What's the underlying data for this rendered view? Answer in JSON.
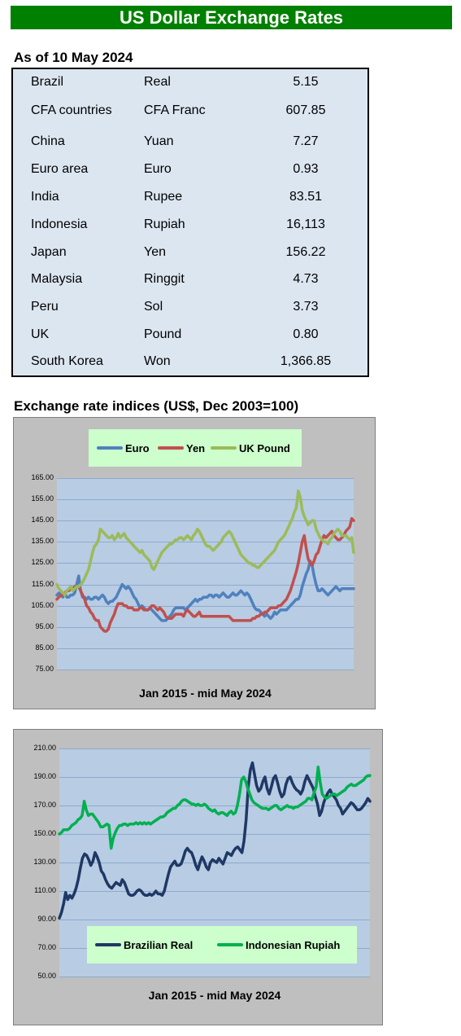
{
  "title": "US Dollar Exchange Rates",
  "as_of": "As of 10 May 2024",
  "rates": [
    {
      "country": "Brazil",
      "currency": "Real",
      "value": "5.15"
    },
    {
      "country": "CFA countries",
      "currency": "CFA Franc",
      "value": "607.85"
    },
    {
      "country": "China",
      "currency": "Yuan",
      "value": "7.27"
    },
    {
      "country": "Euro area",
      "currency": "Euro",
      "value": "0.93"
    },
    {
      "country": "India",
      "currency": "Rupee",
      "value": "83.51"
    },
    {
      "country": "Indonesia",
      "currency": "Rupiah",
      "value": "16,113"
    },
    {
      "country": "Japan",
      "currency": "Yen",
      "value": "156.22"
    },
    {
      "country": "Malaysia",
      "currency": "Ringgit",
      "value": "4.73"
    },
    {
      "country": "Peru",
      "currency": "Sol",
      "value": "3.73"
    },
    {
      "country": "UK",
      "currency": "Pound",
      "value": "0.80"
    },
    {
      "country": "South Korea",
      "currency": "Won",
      "value": "1,366.85"
    }
  ],
  "indices_heading": "Exchange rate indices (US$, Dec 2003=100)",
  "chart_data": [
    {
      "type": "line",
      "xlabel": "Jan 2015 - mid May 2024",
      "ylim": [
        75,
        165
      ],
      "yticks": [
        "165.00",
        "155.00",
        "145.00",
        "135.00",
        "125.00",
        "115.00",
        "105.00",
        "95.00",
        "85.00",
        "75.00"
      ],
      "grid": true,
      "legend_position": "top",
      "series": [
        {
          "name": "Euro",
          "color": "#4f81bd",
          "values": [
            110,
            111,
            110,
            109,
            111,
            109,
            109,
            110,
            110,
            111,
            115,
            119,
            112,
            109,
            109,
            108,
            109,
            108,
            108,
            109,
            109,
            108,
            109,
            110,
            109,
            107,
            106,
            107,
            107,
            108,
            109,
            111,
            113,
            115,
            114,
            113,
            114,
            113,
            111,
            109,
            108,
            106,
            104,
            105,
            104,
            103,
            103,
            104,
            103,
            102,
            101,
            100,
            99,
            98,
            98,
            98,
            99,
            100,
            101,
            103,
            104,
            104,
            104,
            104,
            104,
            103,
            104,
            105,
            106,
            107,
            108,
            107,
            108,
            108,
            109,
            109,
            109,
            110,
            110,
            109,
            110,
            110,
            109,
            110,
            111,
            110,
            109,
            109,
            110,
            111,
            110,
            110,
            111,
            112,
            111,
            110,
            111,
            110,
            108,
            106,
            104,
            103,
            103,
            102,
            101,
            100,
            101,
            100,
            99,
            100,
            102,
            101,
            102,
            103,
            103,
            103,
            103,
            104,
            105,
            106,
            107,
            108,
            108,
            110,
            114,
            117,
            120,
            122,
            126,
            124,
            119,
            115,
            112,
            112,
            113,
            112,
            111,
            110,
            111,
            112,
            113,
            114,
            113,
            112,
            113,
            113,
            113,
            113,
            113,
            113,
            113
          ]
        },
        {
          "name": "Yen",
          "color": "#c0504d",
          "values": [
            108,
            109,
            110,
            110,
            111,
            112,
            112,
            113,
            113,
            114,
            114,
            114,
            112,
            110,
            108,
            105,
            104,
            102,
            101,
            99,
            98,
            98,
            95,
            94,
            93,
            93,
            94,
            97,
            99,
            101,
            104,
            106,
            106,
            106,
            105,
            105,
            104,
            104,
            104,
            103,
            103,
            103,
            104,
            104,
            103,
            103,
            103,
            104,
            105,
            105,
            104,
            103,
            104,
            103,
            102,
            100,
            99,
            99,
            99,
            100,
            101,
            101,
            101,
            101,
            100,
            102,
            103,
            102,
            101,
            100,
            100,
            101,
            102,
            100,
            100,
            100,
            100,
            100,
            100,
            100,
            100,
            100,
            100,
            100,
            100,
            100,
            100,
            100,
            99,
            98,
            98,
            98,
            98,
            98,
            98,
            98,
            98,
            98,
            98,
            99,
            99,
            100,
            100,
            101,
            101,
            102,
            102,
            103,
            104,
            104,
            104,
            104,
            105,
            105,
            106,
            107,
            108,
            110,
            112,
            115,
            118,
            121,
            125,
            130,
            135,
            138,
            132,
            127,
            125,
            124,
            126,
            129,
            130,
            133,
            136,
            138,
            137,
            138,
            139,
            140,
            138,
            137,
            136,
            136,
            137,
            138,
            140,
            141,
            142,
            146,
            145
          ]
        },
        {
          "name": "UK Pound",
          "color": "#9bbb59",
          "values": [
            115,
            113,
            112,
            111,
            110,
            112,
            113,
            114,
            112,
            113,
            114,
            114,
            115,
            116,
            118,
            120,
            122,
            126,
            130,
            133,
            134,
            136,
            141,
            140,
            139,
            138,
            137,
            137,
            138,
            136,
            137,
            139,
            137,
            138,
            139,
            137,
            136,
            135,
            134,
            133,
            132,
            131,
            130,
            131,
            129,
            128,
            127,
            126,
            123,
            122,
            124,
            126,
            128,
            130,
            131,
            132,
            133,
            134,
            134,
            135,
            136,
            136,
            137,
            137,
            136,
            137,
            138,
            137,
            136,
            138,
            139,
            141,
            140,
            138,
            136,
            134,
            133,
            133,
            132,
            131,
            132,
            133,
            134,
            135,
            137,
            138,
            139,
            140,
            139,
            137,
            135,
            133,
            131,
            129,
            128,
            127,
            126,
            125,
            125,
            124,
            124,
            123,
            123,
            124,
            125,
            126,
            127,
            128,
            129,
            130,
            131,
            133,
            135,
            136,
            137,
            138,
            140,
            142,
            144,
            146,
            149,
            151,
            159,
            156,
            150,
            147,
            145,
            143,
            144,
            145,
            145,
            141,
            139,
            137,
            136,
            135,
            135,
            134,
            136,
            137,
            139,
            140,
            141,
            140,
            138,
            138,
            138,
            137,
            136,
            137,
            130
          ]
        }
      ]
    },
    {
      "type": "line",
      "xlabel": "Jan 2015 - mid May 2024",
      "ylim": [
        50,
        210
      ],
      "yticks": [
        "210.00",
        "190.00",
        "170.00",
        "150.00",
        "130.00",
        "110.00",
        "90.00",
        "70.00",
        "50.00"
      ],
      "grid": true,
      "legend_position": "bottom",
      "series": [
        {
          "name": "Brazilian Real",
          "color": "#1f3864",
          "values": [
            91,
            95,
            101,
            109,
            104,
            107,
            105,
            108,
            112,
            118,
            126,
            133,
            136,
            135,
            132,
            128,
            131,
            137,
            134,
            130,
            124,
            122,
            118,
            115,
            113,
            112,
            114,
            116,
            115,
            114,
            118,
            116,
            112,
            108,
            107,
            107,
            108,
            110,
            111,
            110,
            108,
            107,
            107,
            108,
            107,
            108,
            110,
            108,
            108,
            107,
            110,
            116,
            122,
            127,
            129,
            131,
            128,
            128,
            129,
            133,
            138,
            140,
            138,
            137,
            133,
            128,
            125,
            130,
            134,
            131,
            127,
            125,
            130,
            132,
            131,
            130,
            133,
            131,
            129,
            133,
            137,
            136,
            135,
            138,
            140,
            141,
            139,
            137,
            145,
            160,
            183,
            195,
            200,
            192,
            184,
            180,
            182,
            187,
            190,
            182,
            178,
            183,
            189,
            191,
            186,
            180,
            176,
            178,
            185,
            189,
            190,
            186,
            183,
            181,
            180,
            178,
            181,
            187,
            191,
            188,
            185,
            182,
            176,
            171,
            163,
            166,
            172,
            176,
            179,
            181,
            178,
            176,
            174,
            170,
            168,
            164,
            166,
            168,
            170,
            172,
            171,
            169,
            167,
            167,
            168,
            170,
            172,
            175,
            173
          ]
        },
        {
          "name": "Indonesian Rupiah",
          "color": "#00b050",
          "values": [
            150,
            151,
            153,
            153,
            153,
            154,
            156,
            157,
            158,
            160,
            161,
            163,
            173,
            167,
            163,
            164,
            164,
            162,
            160,
            158,
            155,
            155,
            156,
            157,
            156,
            140,
            147,
            151,
            154,
            156,
            156,
            157,
            157,
            156,
            157,
            157,
            157,
            158,
            157,
            158,
            157,
            158,
            157,
            158,
            157,
            158,
            159,
            160,
            161,
            162,
            162,
            163,
            165,
            166,
            167,
            168,
            168,
            170,
            171,
            173,
            174,
            174,
            173,
            172,
            171,
            171,
            170,
            171,
            170,
            170,
            171,
            170,
            168,
            167,
            166,
            167,
            165,
            164,
            165,
            165,
            164,
            163,
            165,
            166,
            164,
            165,
            170,
            178,
            188,
            190,
            187,
            182,
            178,
            174,
            172,
            171,
            170,
            169,
            168,
            168,
            168,
            167,
            168,
            169,
            170,
            170,
            168,
            167,
            168,
            169,
            170,
            169,
            169,
            168,
            169,
            169,
            170,
            171,
            172,
            173,
            175,
            175,
            174,
            179,
            183,
            197,
            186,
            178,
            176,
            175,
            176,
            177,
            178,
            178,
            177,
            178,
            179,
            180,
            181,
            183,
            184,
            185,
            184,
            184,
            185,
            186,
            187,
            188,
            190,
            191,
            191
          ]
        }
      ]
    }
  ]
}
